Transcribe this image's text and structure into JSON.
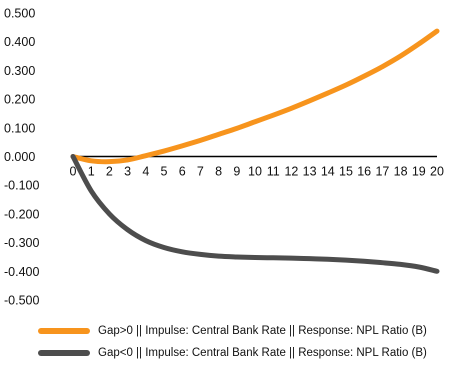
{
  "chart_data": {
    "type": "line",
    "title": "",
    "xlabel": "",
    "ylabel": "",
    "x": [
      0,
      1,
      2,
      3,
      4,
      5,
      6,
      7,
      8,
      9,
      10,
      11,
      12,
      13,
      14,
      15,
      16,
      17,
      18,
      19,
      20
    ],
    "ylim": [
      -0.5,
      0.5
    ],
    "yticks": [
      "0.500",
      "0.400",
      "0.300",
      "0.200",
      "0.100",
      "0.000",
      "-0.100",
      "-0.200",
      "-0.300",
      "-0.400",
      "-0.500"
    ],
    "grid": false,
    "legend_position": "bottom",
    "series": [
      {
        "name": "Gap>0 || Impulse: Central Bank Rate || Response: NPL Ratio (B)",
        "color": "#F7941D",
        "values": [
          0.0,
          -0.015,
          -0.018,
          -0.012,
          0.003,
          0.019,
          0.037,
          0.056,
          0.077,
          0.098,
          0.121,
          0.144,
          0.168,
          0.194,
          0.221,
          0.249,
          0.28,
          0.313,
          0.35,
          0.392,
          0.437
        ]
      },
      {
        "name": "Gap<0 || Impulse: Central Bank Rate || Response: NPL Ratio (B)",
        "color": "#4D4D4D",
        "values": [
          0.0,
          -0.12,
          -0.2,
          -0.255,
          -0.293,
          -0.317,
          -0.332,
          -0.341,
          -0.347,
          -0.35,
          -0.352,
          -0.353,
          -0.354,
          -0.356,
          -0.358,
          -0.361,
          -0.365,
          -0.37,
          -0.376,
          -0.385,
          -0.4
        ]
      }
    ]
  }
}
